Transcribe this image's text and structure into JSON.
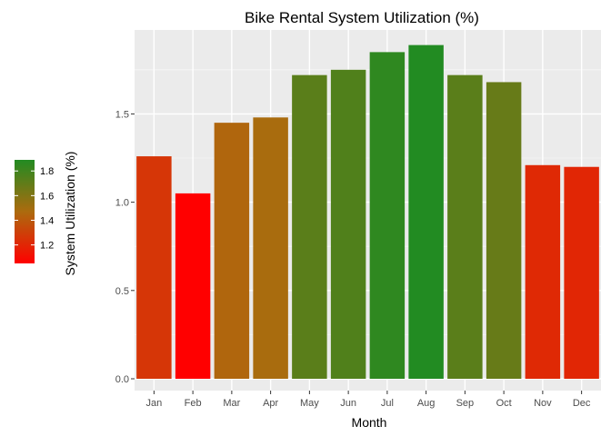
{
  "chart_data": {
    "type": "bar",
    "title": "Bike Rental System Utilization (%)",
    "xlabel": "Month",
    "ylabel": "",
    "categories": [
      "Jan",
      "Feb",
      "Mar",
      "Apr",
      "May",
      "Jun",
      "Jul",
      "Aug",
      "Sep",
      "Oct",
      "Nov",
      "Dec"
    ],
    "values": [
      1.26,
      1.05,
      1.45,
      1.48,
      1.72,
      1.75,
      1.85,
      1.89,
      1.72,
      1.68,
      1.21,
      1.2
    ],
    "ylim": [
      0,
      1.96
    ],
    "yticks": [
      0.0,
      0.5,
      1.0,
      1.5
    ],
    "ytick_labels": [
      "0.0",
      "0.5",
      "1.0",
      "1.5"
    ],
    "grid": true,
    "legend": {
      "title": "System Utilization (%)",
      "placement": "left",
      "min": 1.05,
      "max": 1.89,
      "ticks": [
        1.2,
        1.4,
        1.6,
        1.8
      ],
      "tick_labels": [
        "1.2",
        "1.4",
        "1.6",
        "1.8"
      ],
      "color_low": "#ff0000",
      "color_mid": "#ac6b0e",
      "color_high": "#228b22"
    },
    "colors": {
      "panel_background": "#ebebeb",
      "grid_major": "#ffffff",
      "grid_minor": "#f5f5f5"
    }
  }
}
